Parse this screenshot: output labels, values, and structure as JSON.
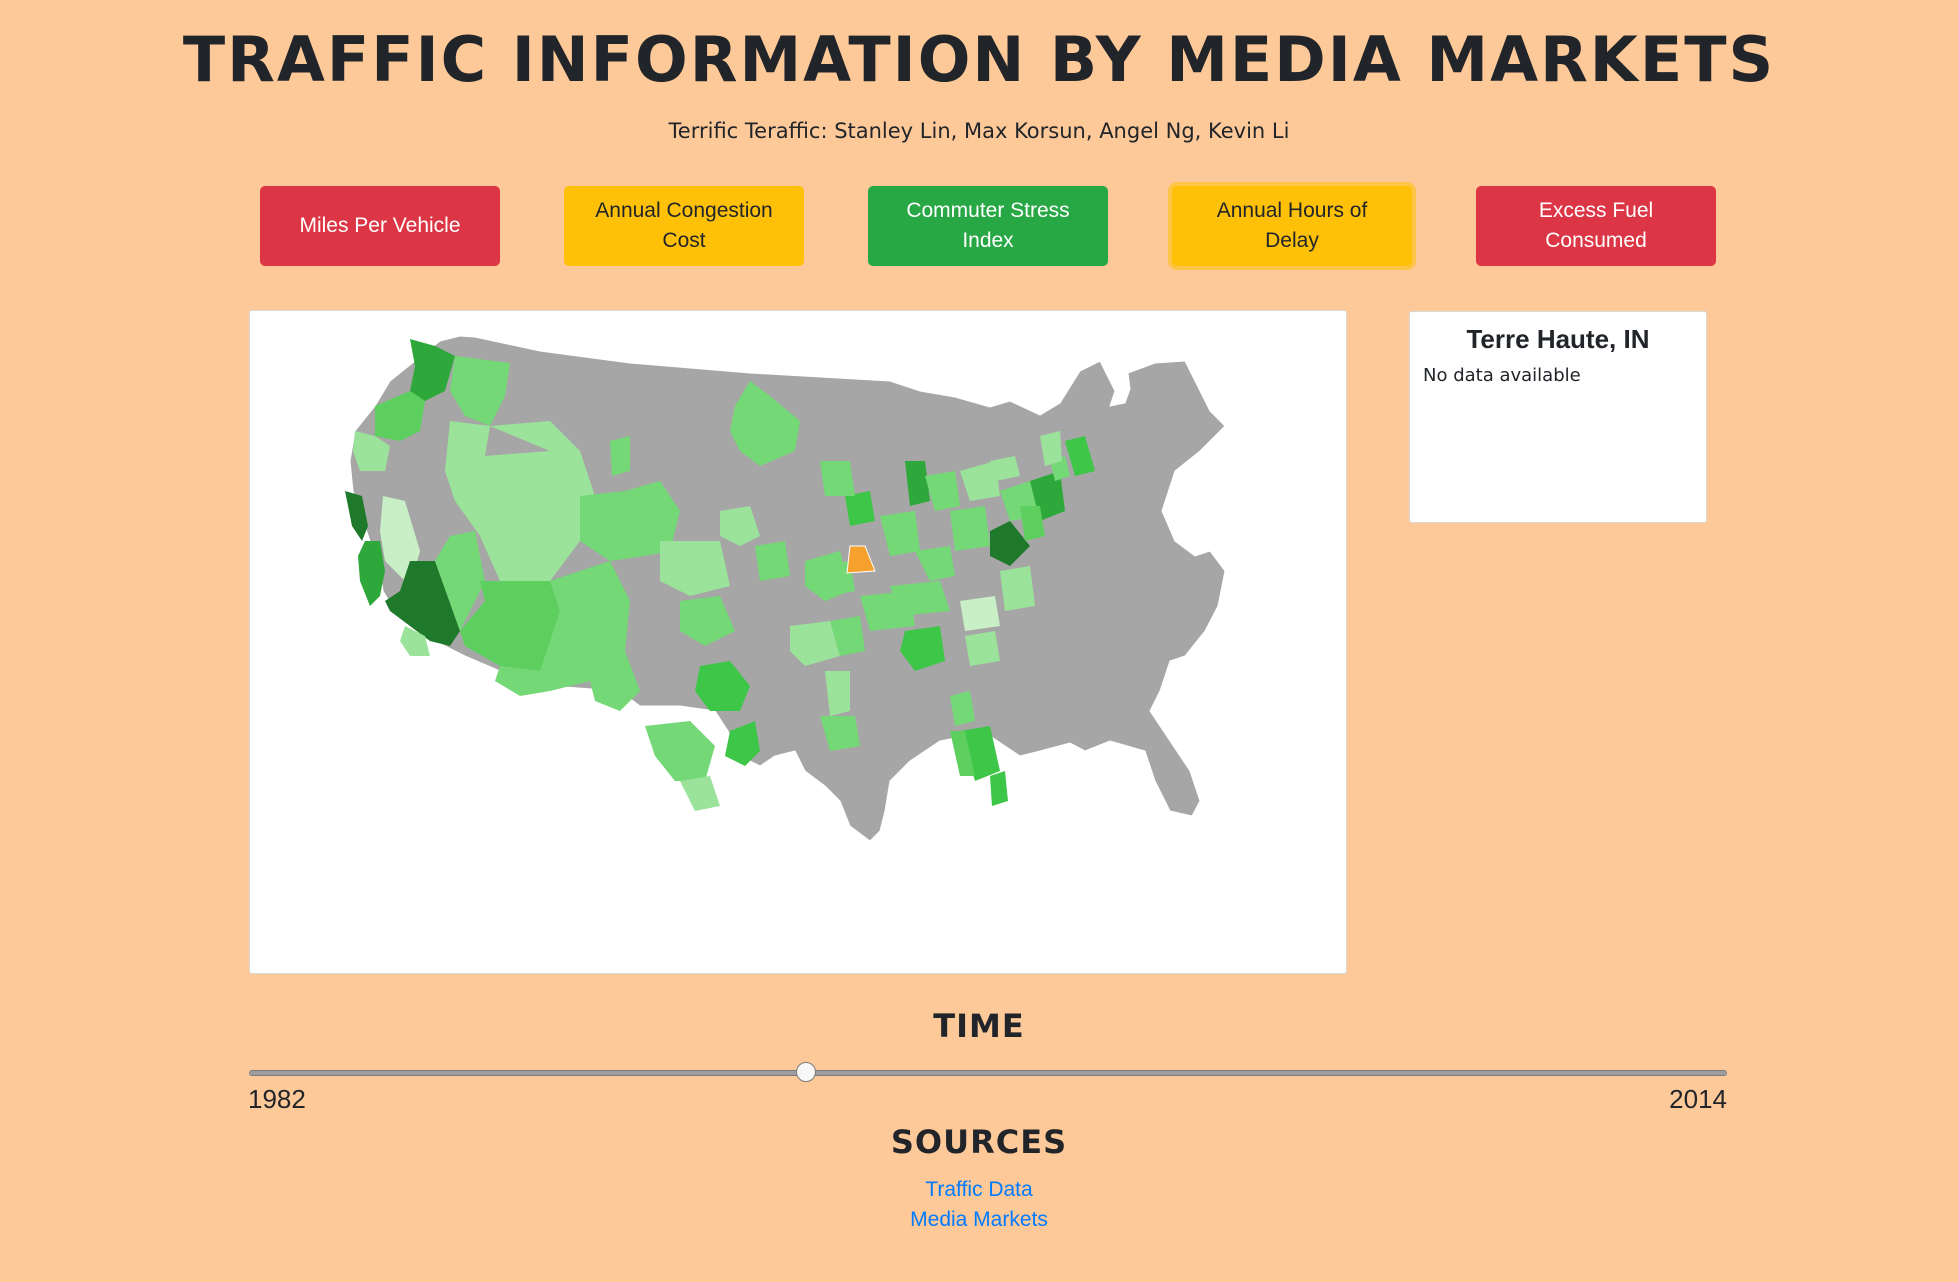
{
  "header": {
    "title": "TRAFFIC INFORMATION BY MEDIA MARKETS",
    "subtitle": "Terrific Teraffic: Stanley Lin, Max Korsun, Angel Ng, Kevin Li"
  },
  "metric_buttons": [
    {
      "label": "Miles Per Vehicle",
      "color": "#dc3545"
    },
    {
      "label": "Annual Congestion Cost",
      "color": "#ffc107"
    },
    {
      "label": "Commuter Stress Index",
      "color": "#28a745"
    },
    {
      "label": "Annual Hours of Delay",
      "color": "#ffc107",
      "active": true
    },
    {
      "label": "Excess Fuel Consumed",
      "color": "#dc3545"
    }
  ],
  "map": {
    "no_data_color": "#a6a6a6",
    "selected_color": "#f6a02d",
    "scale_colors": [
      "#c9efc7",
      "#9be39a",
      "#74d877",
      "#5ccf5e",
      "#3dc647",
      "#2ea83a",
      "#1e7a2a"
    ]
  },
  "info_panel": {
    "market_name": "Terre Haute, IN",
    "message": "No data available"
  },
  "time": {
    "heading": "TIME",
    "min_year": "1982",
    "max_year": "2014",
    "position_fraction": 0.377
  },
  "sources": {
    "heading": "SOURCES",
    "links": [
      "Traffic Data",
      "Media Markets"
    ]
  }
}
